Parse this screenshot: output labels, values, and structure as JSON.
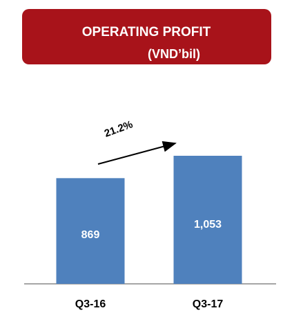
{
  "chart_data": {
    "type": "bar",
    "title": "OPERATING PROFIT",
    "subtitle": "(VND’bil)",
    "categories": [
      "Q3-16",
      "Q3-17"
    ],
    "values": [
      869,
      1053
    ],
    "value_labels": [
      "869",
      "1,053"
    ],
    "color": "#4f81bd",
    "annotations": [
      "21.2%"
    ]
  }
}
